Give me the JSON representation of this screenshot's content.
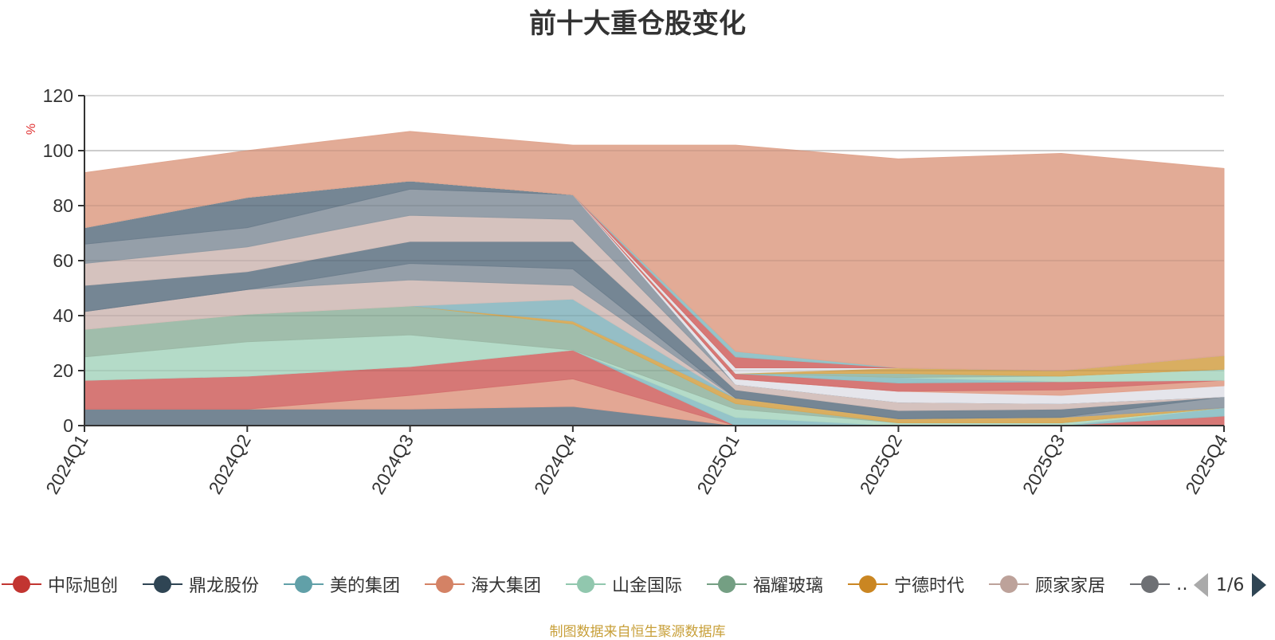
{
  "chart_data": {
    "type": "area",
    "stacked": true,
    "title": "前十大重仓股变化",
    "ylabel": "%",
    "ylim": [
      0,
      120
    ],
    "yticks": [
      "0",
      "20",
      "40",
      "60",
      "80",
      "100",
      "120"
    ],
    "grid": true,
    "categories": [
      "2024Q1",
      "2024Q2",
      "2024Q3",
      "2024Q4",
      "2025Q1",
      "2025Q2",
      "2025Q3",
      "2025Q4"
    ],
    "legend_position": "bottom",
    "legend_page": "1/6",
    "legend": [
      {
        "name": "中际旭创",
        "color": "#c23531"
      },
      {
        "name": "鼎龙股份",
        "color": "#2f4554"
      },
      {
        "name": "美的集团",
        "color": "#61a0a8"
      },
      {
        "name": "海大集团",
        "color": "#d48265"
      },
      {
        "name": "山金国际",
        "color": "#91c7ae"
      },
      {
        "name": "福耀玻璃",
        "color": "#749f83"
      },
      {
        "name": "宁德时代",
        "color": "#ca8622"
      },
      {
        "name": "顾家家居",
        "color": "#bda29a"
      },
      {
        "name": "…",
        "color": "#6e7074"
      }
    ],
    "series": [
      {
        "color": "#6e7f8e",
        "values": [
          6,
          6,
          6,
          7,
          0,
          0,
          0,
          0
        ]
      },
      {
        "color": "#e2a28e",
        "values": [
          0,
          0,
          5,
          10,
          0,
          0,
          0,
          0
        ]
      },
      {
        "color": "#d4716f",
        "values": [
          10.5,
          12,
          10.5,
          10.5,
          0,
          0,
          0,
          3.5
        ]
      },
      {
        "color": "#8fc1c6",
        "values": [
          0,
          0,
          0,
          0,
          3,
          0,
          0,
          3
        ]
      },
      {
        "color": "#b0d9c5",
        "values": [
          8.5,
          12.5,
          11.5,
          0,
          3,
          1,
          1,
          0
        ]
      },
      {
        "color": "#9bb9a6",
        "values": [
          10,
          10,
          10.5,
          9.5,
          2,
          0,
          0,
          0
        ]
      },
      {
        "color": "#d7aa58",
        "values": [
          0,
          0,
          0,
          1,
          2,
          1.5,
          2,
          0
        ]
      },
      {
        "color": "#8fbac3",
        "values": [
          0,
          0,
          0,
          8,
          0,
          0,
          0,
          0
        ]
      },
      {
        "color": "#d3bfba",
        "values": [
          6.5,
          9,
          9.5,
          5,
          0,
          0,
          0,
          0
        ]
      },
      {
        "color": "#8f9aa4",
        "values": [
          0,
          0,
          6,
          6,
          0,
          0,
          0,
          4
        ]
      },
      {
        "color": "#6e7f8e",
        "values": [
          9.5,
          6.5,
          8,
          10,
          3,
          3,
          3,
          0
        ]
      },
      {
        "color": "#d3bfba",
        "values": [
          8,
          9,
          9.5,
          8,
          2,
          3,
          2,
          0
        ]
      },
      {
        "color": "#8f9aa4",
        "values": [
          7,
          7,
          9.5,
          9,
          0,
          0,
          0,
          0
        ]
      },
      {
        "color": "#6e7f8e",
        "values": [
          6,
          11,
          3,
          0,
          0,
          0,
          0,
          0
        ]
      },
      {
        "color": "#e4e4ea",
        "values": [
          0,
          0,
          0,
          0,
          2,
          4,
          3,
          4
        ]
      },
      {
        "color": "#e2a28e",
        "values": [
          0,
          0,
          0,
          0,
          0,
          0,
          2,
          2
        ]
      },
      {
        "color": "#d4716f",
        "values": [
          0,
          0,
          0,
          0,
          2,
          3,
          3,
          0
        ]
      },
      {
        "color": "#8fc1c6",
        "values": [
          0,
          0,
          0,
          0,
          0,
          2,
          0,
          0
        ]
      },
      {
        "color": "#b0d9c5",
        "values": [
          0,
          0,
          0,
          0,
          0,
          0,
          2,
          4
        ]
      },
      {
        "color": "#9bb9a6",
        "values": [
          0,
          0,
          0,
          0,
          0,
          1.5,
          0,
          0
        ]
      },
      {
        "color": "#d7aa58",
        "values": [
          0,
          0,
          0,
          0,
          0,
          2,
          2,
          5
        ]
      },
      {
        "color": "#e4e4ea",
        "values": [
          0,
          0,
          0,
          0,
          2,
          0,
          0,
          0
        ]
      },
      {
        "color": "#d4716f",
        "values": [
          0,
          0,
          0,
          0,
          4,
          0,
          0,
          0
        ]
      },
      {
        "color": "#8fc1c6",
        "values": [
          0,
          0,
          0,
          0,
          2,
          0,
          0,
          0
        ]
      },
      {
        "color": "#e0a690",
        "values": [
          20,
          17,
          18,
          18,
          75,
          76,
          79,
          68
        ]
      }
    ]
  },
  "source_note": "制图数据来自恒生聚源数据库"
}
